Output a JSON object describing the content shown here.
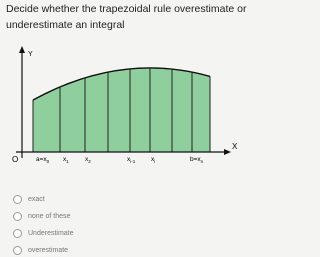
{
  "question": [
    "Decide whether the trapezoidal rule overestimate or",
    "underestimate an integral"
  ],
  "figure": {
    "y_axis": "Y",
    "x_axis": "X",
    "origin": "O",
    "x_labels": [
      {
        "base": "a=x",
        "sub": "0"
      },
      {
        "base": "x",
        "sub": "1"
      },
      {
        "base": "x",
        "sub": "2"
      },
      {
        "base": "x",
        "sub": "i-1"
      },
      {
        "base": "x",
        "sub": "i"
      },
      {
        "base": "b=x",
        "sub": "n"
      }
    ]
  },
  "options": [
    "exact",
    "none of these",
    "Underestimate",
    "overestimate"
  ]
}
